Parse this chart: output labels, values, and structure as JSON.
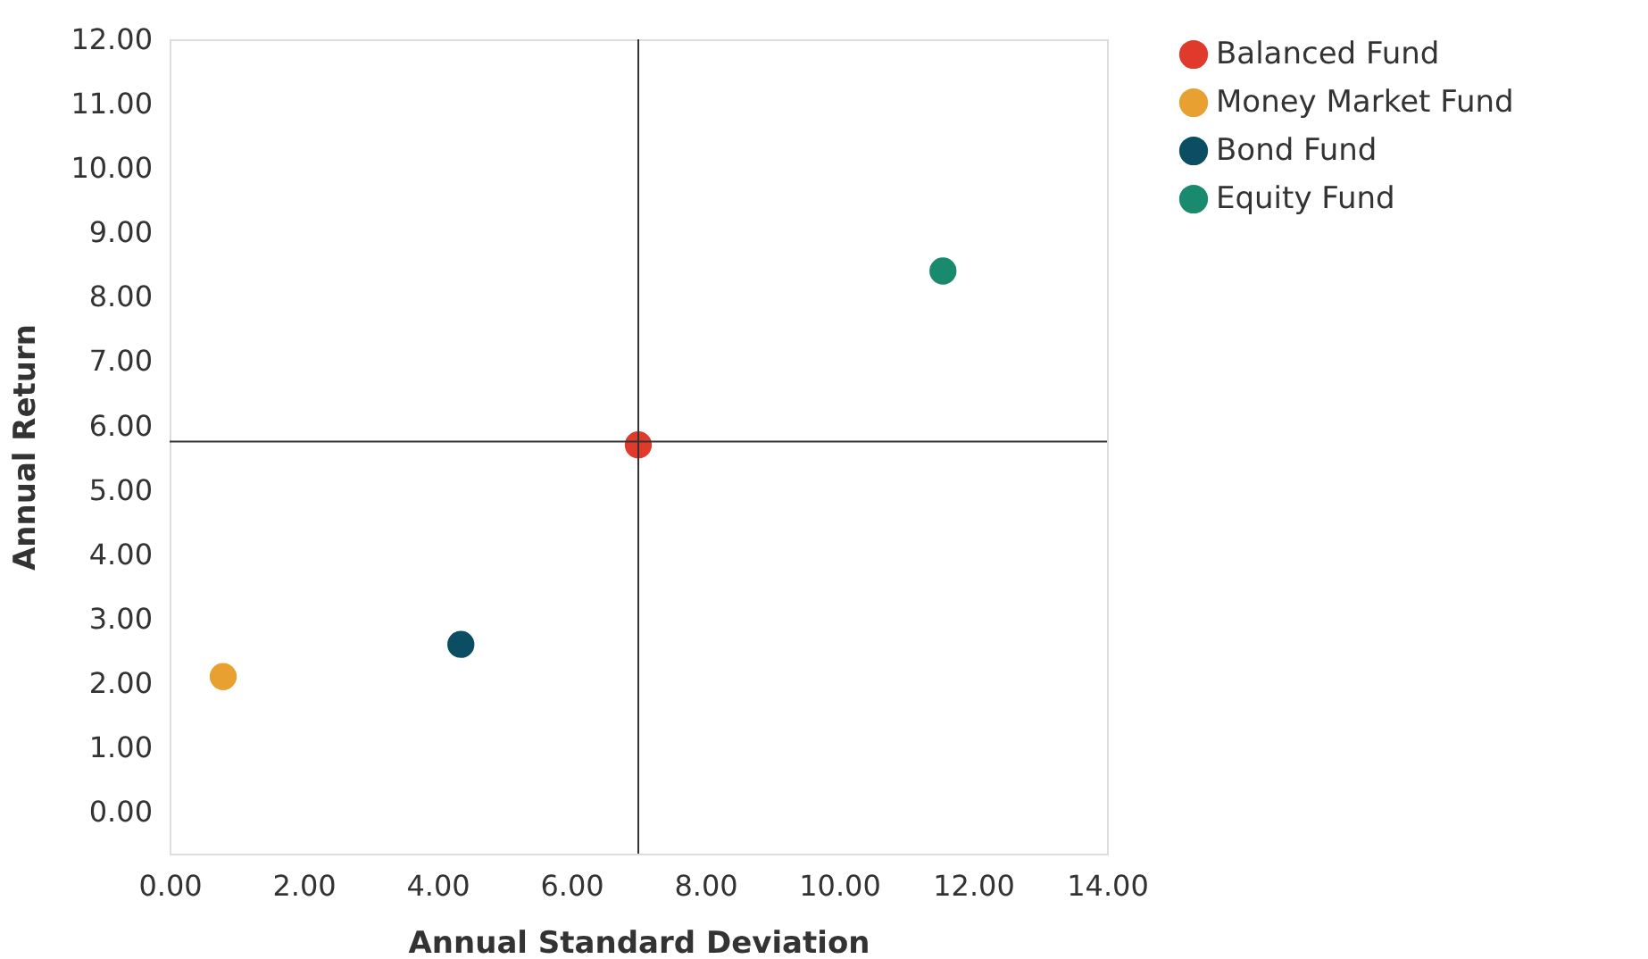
{
  "chart_data": {
    "type": "scatter",
    "xlabel": "Annual Standard Deviation",
    "ylabel": "Annual Return",
    "xlim": [
      0,
      14
    ],
    "ylim": [
      -0.65,
      12
    ],
    "xticks": [
      {
        "value": 0,
        "label": "0.00"
      },
      {
        "value": 2,
        "label": "2.00"
      },
      {
        "value": 4,
        "label": "4.00"
      },
      {
        "value": 6,
        "label": "6.00"
      },
      {
        "value": 8,
        "label": "8.00"
      },
      {
        "value": 10,
        "label": "10.00"
      },
      {
        "value": 12,
        "label": "12.00"
      },
      {
        "value": 14,
        "label": "14.00"
      }
    ],
    "yticks": [
      {
        "value": 0,
        "label": "0.00"
      },
      {
        "value": 1,
        "label": "1.00"
      },
      {
        "value": 2,
        "label": "2.00"
      },
      {
        "value": 3,
        "label": "3.00"
      },
      {
        "value": 4,
        "label": "4.00"
      },
      {
        "value": 5,
        "label": "5.00"
      },
      {
        "value": 6,
        "label": "6.00"
      },
      {
        "value": 7,
        "label": "7.00"
      },
      {
        "value": 8,
        "label": "8.00"
      },
      {
        "value": 9,
        "label": "9.00"
      },
      {
        "value": 10,
        "label": "10.00"
      },
      {
        "value": 11,
        "label": "11.00"
      },
      {
        "value": 12,
        "label": "12.00"
      }
    ],
    "series": [
      {
        "name": "Balanced Fund",
        "color": "#e03a2c",
        "x": [
          7.0
        ],
        "values": [
          5.7
        ]
      },
      {
        "name": "Money Market Fund",
        "color": "#e8a030",
        "x": [
          0.8
        ],
        "values": [
          2.1
        ]
      },
      {
        "name": "Bond Fund",
        "color": "#0b4d63",
        "x": [
          4.35
        ],
        "values": [
          2.6
        ]
      },
      {
        "name": "Equity Fund",
        "color": "#1a8a6e",
        "x": [
          11.55
        ],
        "values": [
          8.4
        ]
      }
    ],
    "ref_lines": [
      {
        "axis": "x",
        "value": 7.0,
        "color": "#333333"
      },
      {
        "axis": "y",
        "value": 5.75,
        "color": "#333333"
      }
    ],
    "marker": "circle",
    "grid": false,
    "legend": "right"
  }
}
